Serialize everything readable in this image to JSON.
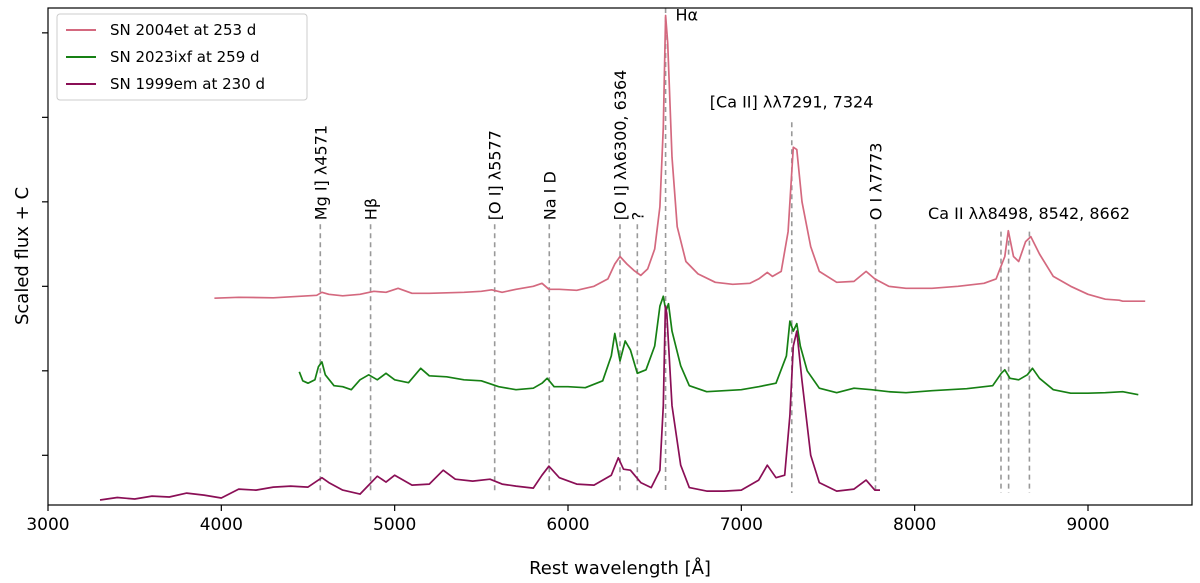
{
  "chart_data": {
    "type": "line",
    "title": "",
    "xlabel": "Rest wavelength [Å]",
    "ylabel": "Scaled flux + C",
    "xlim": [
      3000,
      9600
    ],
    "ylim": [
      0,
      1
    ],
    "x_ticks": [
      3000,
      4000,
      5000,
      6000,
      7000,
      8000,
      9000
    ],
    "y_ticks_unlabeled": [
      0.1,
      0.27,
      0.44,
      0.61,
      0.78,
      0.95
    ],
    "grid": false,
    "legend_position": "top-left",
    "series": [
      {
        "name": "SN 2004et at 253 d",
        "color": "#d4697f",
        "points": [
          [
            3960,
            0.416
          ],
          [
            4100,
            0.418
          ],
          [
            4300,
            0.417
          ],
          [
            4450,
            0.42
          ],
          [
            4550,
            0.422
          ],
          [
            4580,
            0.428
          ],
          [
            4620,
            0.424
          ],
          [
            4700,
            0.421
          ],
          [
            4800,
            0.424
          ],
          [
            4880,
            0.43
          ],
          [
            4950,
            0.428
          ],
          [
            5020,
            0.436
          ],
          [
            5100,
            0.426
          ],
          [
            5200,
            0.426
          ],
          [
            5300,
            0.427
          ],
          [
            5400,
            0.428
          ],
          [
            5500,
            0.43
          ],
          [
            5560,
            0.433
          ],
          [
            5620,
            0.428
          ],
          [
            5700,
            0.434
          ],
          [
            5800,
            0.44
          ],
          [
            5850,
            0.446
          ],
          [
            5890,
            0.434
          ],
          [
            5950,
            0.434
          ],
          [
            6050,
            0.432
          ],
          [
            6150,
            0.44
          ],
          [
            6230,
            0.455
          ],
          [
            6270,
            0.485
          ],
          [
            6300,
            0.5
          ],
          [
            6340,
            0.485
          ],
          [
            6380,
            0.472
          ],
          [
            6420,
            0.462
          ],
          [
            6460,
            0.475
          ],
          [
            6500,
            0.515
          ],
          [
            6530,
            0.6
          ],
          [
            6550,
            0.76
          ],
          [
            6563,
            0.985
          ],
          [
            6575,
            0.93
          ],
          [
            6600,
            0.7
          ],
          [
            6630,
            0.56
          ],
          [
            6680,
            0.49
          ],
          [
            6750,
            0.465
          ],
          [
            6850,
            0.448
          ],
          [
            6950,
            0.444
          ],
          [
            7050,
            0.446
          ],
          [
            7100,
            0.455
          ],
          [
            7150,
            0.468
          ],
          [
            7180,
            0.46
          ],
          [
            7230,
            0.47
          ],
          [
            7270,
            0.55
          ],
          [
            7300,
            0.72
          ],
          [
            7320,
            0.715
          ],
          [
            7350,
            0.61
          ],
          [
            7400,
            0.52
          ],
          [
            7450,
            0.47
          ],
          [
            7550,
            0.448
          ],
          [
            7650,
            0.45
          ],
          [
            7720,
            0.47
          ],
          [
            7770,
            0.455
          ],
          [
            7850,
            0.44
          ],
          [
            7950,
            0.436
          ],
          [
            8100,
            0.436
          ],
          [
            8250,
            0.44
          ],
          [
            8400,
            0.446
          ],
          [
            8470,
            0.455
          ],
          [
            8520,
            0.5
          ],
          [
            8540,
            0.552
          ],
          [
            8570,
            0.5
          ],
          [
            8600,
            0.49
          ],
          [
            8640,
            0.53
          ],
          [
            8670,
            0.54
          ],
          [
            8720,
            0.505
          ],
          [
            8800,
            0.46
          ],
          [
            8900,
            0.44
          ],
          [
            9000,
            0.424
          ],
          [
            9100,
            0.414
          ],
          [
            9180,
            0.412
          ],
          [
            9200,
            0.41
          ],
          [
            9330,
            0.41
          ]
        ]
      },
      {
        "name": "SN 2023ixf at 259 d",
        "color": "#168014",
        "points": [
          [
            4450,
            0.268
          ],
          [
            4470,
            0.25
          ],
          [
            4500,
            0.245
          ],
          [
            4540,
            0.252
          ],
          [
            4560,
            0.278
          ],
          [
            4580,
            0.288
          ],
          [
            4600,
            0.262
          ],
          [
            4650,
            0.24
          ],
          [
            4700,
            0.238
          ],
          [
            4750,
            0.232
          ],
          [
            4800,
            0.252
          ],
          [
            4850,
            0.262
          ],
          [
            4900,
            0.252
          ],
          [
            4950,
            0.265
          ],
          [
            5000,
            0.252
          ],
          [
            5080,
            0.246
          ],
          [
            5150,
            0.275
          ],
          [
            5200,
            0.26
          ],
          [
            5300,
            0.258
          ],
          [
            5400,
            0.252
          ],
          [
            5500,
            0.25
          ],
          [
            5600,
            0.238
          ],
          [
            5700,
            0.232
          ],
          [
            5800,
            0.235
          ],
          [
            5850,
            0.245
          ],
          [
            5880,
            0.255
          ],
          [
            5920,
            0.238
          ],
          [
            6000,
            0.238
          ],
          [
            6100,
            0.236
          ],
          [
            6200,
            0.25
          ],
          [
            6250,
            0.3
          ],
          [
            6270,
            0.345
          ],
          [
            6300,
            0.29
          ],
          [
            6330,
            0.33
          ],
          [
            6360,
            0.312
          ],
          [
            6400,
            0.265
          ],
          [
            6450,
            0.272
          ],
          [
            6500,
            0.32
          ],
          [
            6530,
            0.4
          ],
          [
            6550,
            0.42
          ],
          [
            6565,
            0.39
          ],
          [
            6580,
            0.405
          ],
          [
            6600,
            0.35
          ],
          [
            6650,
            0.28
          ],
          [
            6700,
            0.24
          ],
          [
            6800,
            0.228
          ],
          [
            6900,
            0.23
          ],
          [
            7000,
            0.232
          ],
          [
            7100,
            0.238
          ],
          [
            7200,
            0.245
          ],
          [
            7260,
            0.3
          ],
          [
            7280,
            0.37
          ],
          [
            7300,
            0.35
          ],
          [
            7320,
            0.365
          ],
          [
            7340,
            0.32
          ],
          [
            7380,
            0.27
          ],
          [
            7450,
            0.235
          ],
          [
            7550,
            0.226
          ],
          [
            7650,
            0.235
          ],
          [
            7750,
            0.232
          ],
          [
            7850,
            0.228
          ],
          [
            7950,
            0.226
          ],
          [
            8100,
            0.23
          ],
          [
            8300,
            0.234
          ],
          [
            8450,
            0.24
          ],
          [
            8500,
            0.265
          ],
          [
            8520,
            0.272
          ],
          [
            8550,
            0.255
          ],
          [
            8600,
            0.252
          ],
          [
            8650,
            0.262
          ],
          [
            8680,
            0.275
          ],
          [
            8720,
            0.255
          ],
          [
            8800,
            0.232
          ],
          [
            8900,
            0.225
          ],
          [
            9000,
            0.225
          ],
          [
            9100,
            0.226
          ],
          [
            9200,
            0.228
          ],
          [
            9290,
            0.222
          ]
        ]
      },
      {
        "name": "SN 1999em at 230 d",
        "color": "#8a0f56",
        "points": [
          [
            3300,
            0.01
          ],
          [
            3400,
            0.015
          ],
          [
            3500,
            0.012
          ],
          [
            3600,
            0.018
          ],
          [
            3700,
            0.016
          ],
          [
            3800,
            0.024
          ],
          [
            3900,
            0.02
          ],
          [
            4000,
            0.014
          ],
          [
            4100,
            0.032
          ],
          [
            4200,
            0.03
          ],
          [
            4300,
            0.036
          ],
          [
            4400,
            0.038
          ],
          [
            4500,
            0.036
          ],
          [
            4580,
            0.055
          ],
          [
            4620,
            0.045
          ],
          [
            4700,
            0.03
          ],
          [
            4800,
            0.022
          ],
          [
            4850,
            0.04
          ],
          [
            4900,
            0.058
          ],
          [
            4950,
            0.046
          ],
          [
            5000,
            0.06
          ],
          [
            5100,
            0.04
          ],
          [
            5200,
            0.042
          ],
          [
            5280,
            0.07
          ],
          [
            5350,
            0.052
          ],
          [
            5450,
            0.048
          ],
          [
            5550,
            0.052
          ],
          [
            5620,
            0.042
          ],
          [
            5700,
            0.038
          ],
          [
            5800,
            0.034
          ],
          [
            5850,
            0.06
          ],
          [
            5890,
            0.078
          ],
          [
            5950,
            0.055
          ],
          [
            6050,
            0.042
          ],
          [
            6150,
            0.04
          ],
          [
            6250,
            0.06
          ],
          [
            6290,
            0.095
          ],
          [
            6320,
            0.072
          ],
          [
            6360,
            0.07
          ],
          [
            6420,
            0.045
          ],
          [
            6480,
            0.035
          ],
          [
            6530,
            0.07
          ],
          [
            6550,
            0.2
          ],
          [
            6562,
            0.4
          ],
          [
            6570,
            0.385
          ],
          [
            6600,
            0.2
          ],
          [
            6650,
            0.08
          ],
          [
            6700,
            0.035
          ],
          [
            6800,
            0.028
          ],
          [
            6900,
            0.028
          ],
          [
            7000,
            0.03
          ],
          [
            7100,
            0.05
          ],
          [
            7150,
            0.08
          ],
          [
            7200,
            0.055
          ],
          [
            7250,
            0.06
          ],
          [
            7280,
            0.18
          ],
          [
            7300,
            0.32
          ],
          [
            7320,
            0.35
          ],
          [
            7350,
            0.25
          ],
          [
            7400,
            0.1
          ],
          [
            7450,
            0.045
          ],
          [
            7550,
            0.028
          ],
          [
            7650,
            0.032
          ],
          [
            7720,
            0.05
          ],
          [
            7770,
            0.03
          ],
          [
            7800,
            0.03
          ]
        ]
      }
    ],
    "vlines": [
      {
        "x": 4571,
        "label": "Mg I] λ4571",
        "label_y": 0.565
      },
      {
        "x": 4861,
        "label": "Hβ",
        "label_y": 0.565
      },
      {
        "x": 5577,
        "label": "[O I] λ5577",
        "label_y": 0.565
      },
      {
        "x": 5892,
        "label": "Na I D",
        "label_y": 0.565
      },
      {
        "x": 6300,
        "label": "[O I] λλ6300, 6364",
        "label_y": 0.565
      },
      {
        "x": 6400,
        "label": "?",
        "label_y": 0.565
      },
      {
        "x": 6563,
        "label": "",
        "label_y": 1.0
      },
      {
        "x": 7291,
        "label": "",
        "label_y": 0.77
      },
      {
        "x": 7774,
        "label": "O I λ7773",
        "label_y": 0.565
      },
      {
        "x": 8498,
        "label": "",
        "label_y": 0.55
      },
      {
        "x": 8542,
        "label": "",
        "label_y": 0.55
      },
      {
        "x": 8662,
        "label": "",
        "label_y": 0.55
      }
    ],
    "annotations": [
      {
        "text": "Hα",
        "x": 6620,
        "y": 0.975
      },
      {
        "text": "[Ca II] λλ7291, 7324",
        "x": 7290,
        "y": 0.8
      },
      {
        "text": "Ca II λλ8498, 8542, 8662",
        "x": 8660,
        "y": 0.575
      }
    ]
  }
}
